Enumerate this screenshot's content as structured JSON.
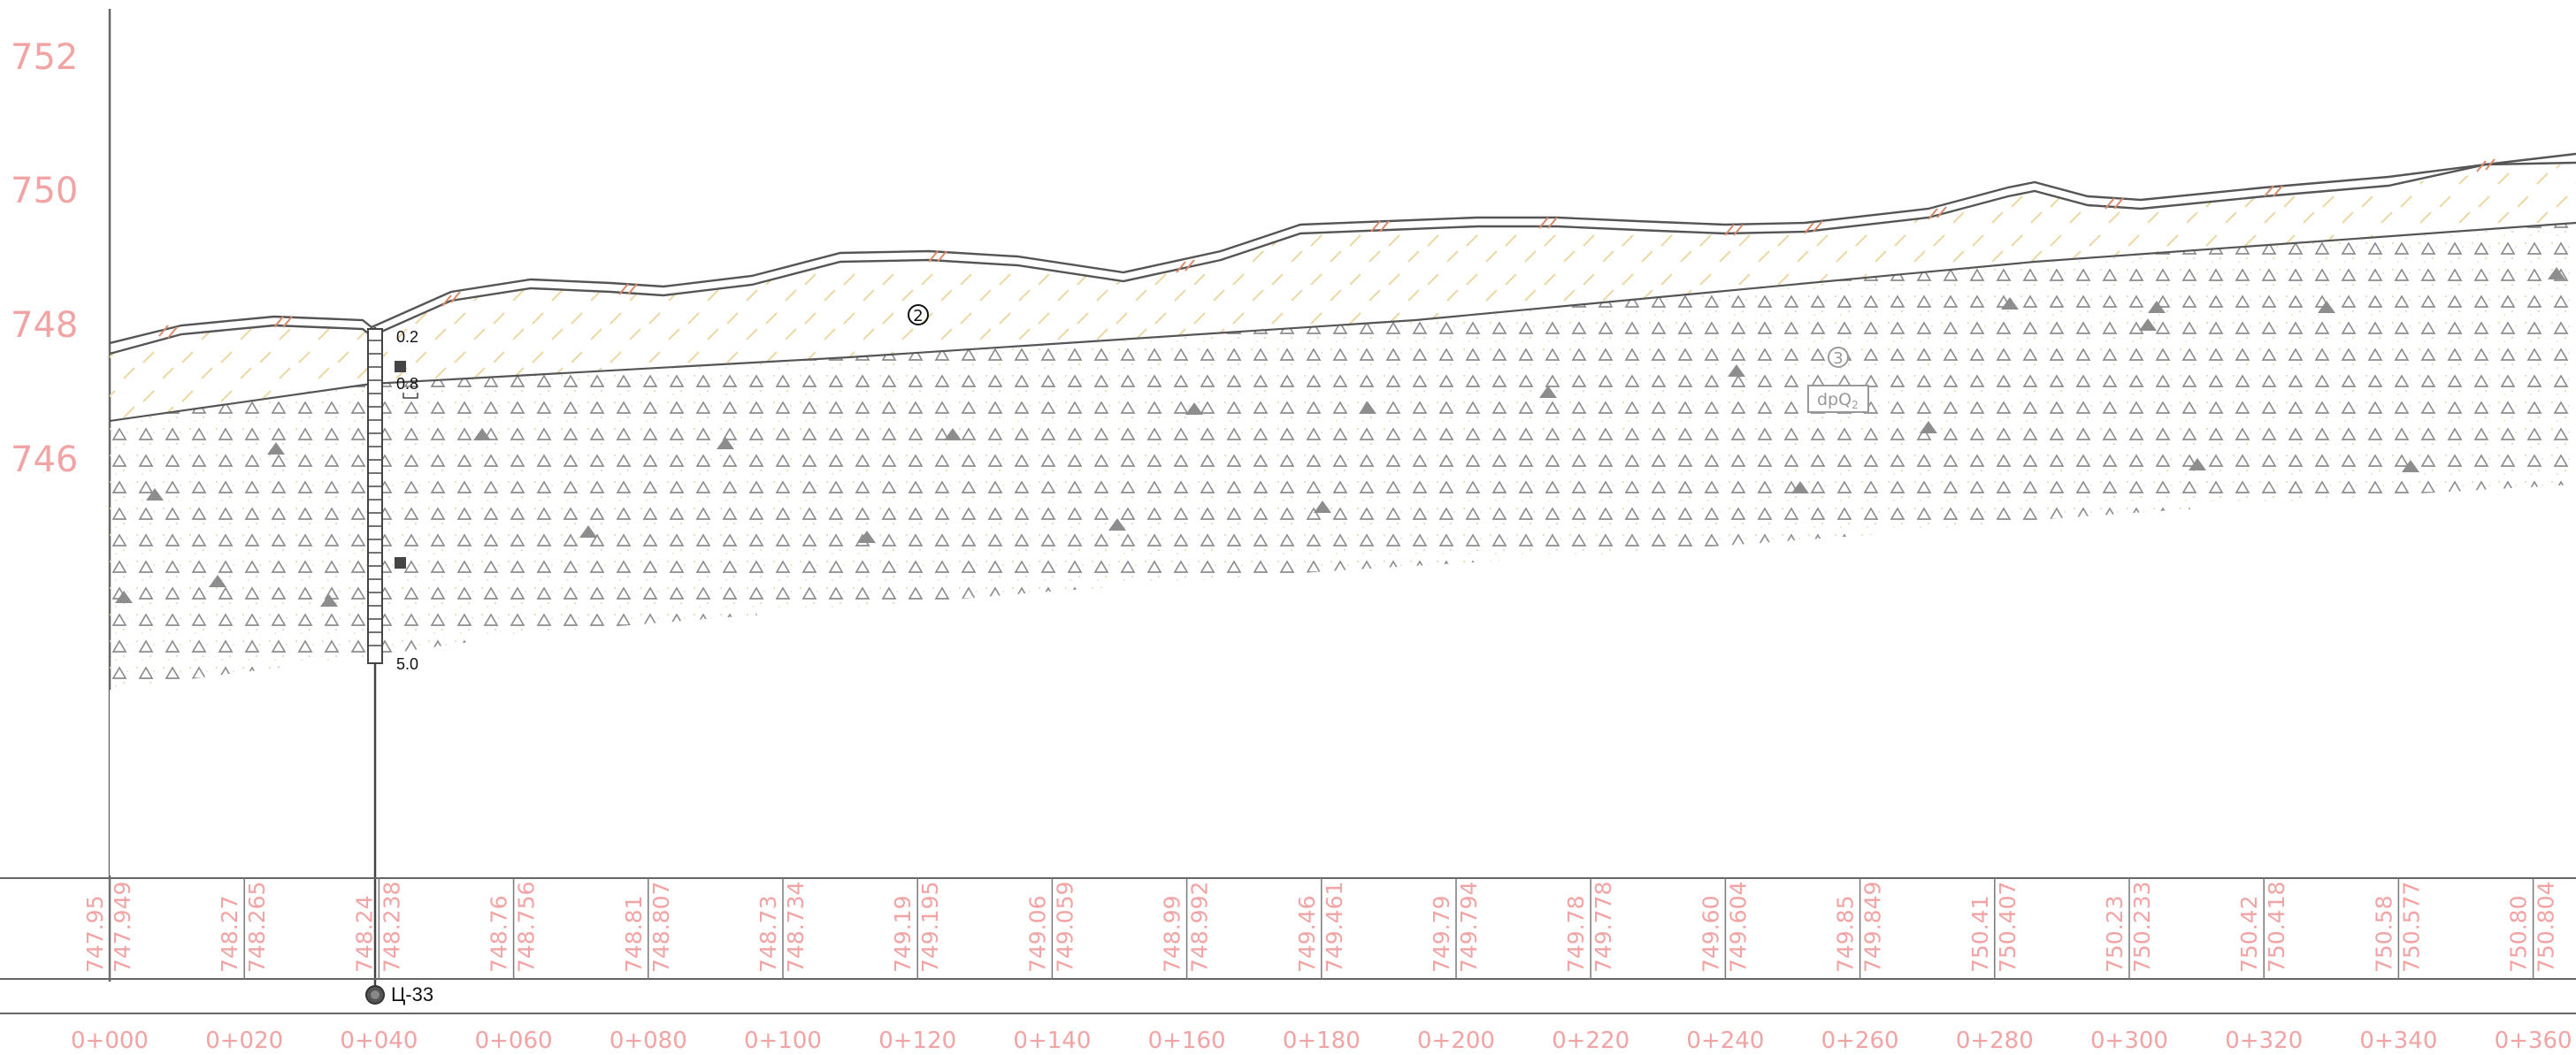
{
  "elevation_axis": {
    "labels": [
      "752",
      "750",
      "748",
      "746"
    ],
    "label_color": "#f2a3a3"
  },
  "layers": {
    "layer_2_marker": "2",
    "layer_3_marker": "3",
    "layer_3_code": "dpQ",
    "layer_3_code_sub": "2"
  },
  "borehole": {
    "name": "Ц-33",
    "depth_labels": [
      "0.2",
      "0.8",
      "5.0"
    ]
  },
  "stations": [
    {
      "chainage": "0+000",
      "design": "747.95",
      "ground": "747.949"
    },
    {
      "chainage": "0+020",
      "design": "748.27",
      "ground": "748.265"
    },
    {
      "chainage": "0+040",
      "design": "748.24",
      "ground": "748.238"
    },
    {
      "chainage": "0+060",
      "design": "748.76",
      "ground": "748.756"
    },
    {
      "chainage": "0+080",
      "design": "748.81",
      "ground": "748.807"
    },
    {
      "chainage": "0+100",
      "design": "748.73",
      "ground": "748.734"
    },
    {
      "chainage": "0+120",
      "design": "749.19",
      "ground": "749.195"
    },
    {
      "chainage": "0+140",
      "design": "749.06",
      "ground": "749.059"
    },
    {
      "chainage": "0+160",
      "design": "748.99",
      "ground": "748.992"
    },
    {
      "chainage": "0+180",
      "design": "749.46",
      "ground": "749.461"
    },
    {
      "chainage": "0+200",
      "design": "749.79",
      "ground": "749.794"
    },
    {
      "chainage": "0+220",
      "design": "749.78",
      "ground": "749.778"
    },
    {
      "chainage": "0+240",
      "design": "749.60",
      "ground": "749.604"
    },
    {
      "chainage": "0+260",
      "design": "749.85",
      "ground": "749.849"
    },
    {
      "chainage": "0+280",
      "design": "750.41",
      "ground": "750.407"
    },
    {
      "chainage": "0+300",
      "design": "750.23",
      "ground": "750.233"
    },
    {
      "chainage": "0+320",
      "design": "750.42",
      "ground": "750.418"
    },
    {
      "chainage": "0+340",
      "design": "750.58",
      "ground": "750.577"
    },
    {
      "chainage": "0+360",
      "design": "750.80",
      "ground": "750.804"
    }
  ],
  "colors": {
    "annotation_pink": "#f2a3a3",
    "line_dark": "#555555",
    "soil_fill": "#f8f3e8",
    "loam_hatch": "#ead9a6",
    "topsoil_hatch": "#d98a6a",
    "gravel_symbol": "#8d8d8d"
  }
}
